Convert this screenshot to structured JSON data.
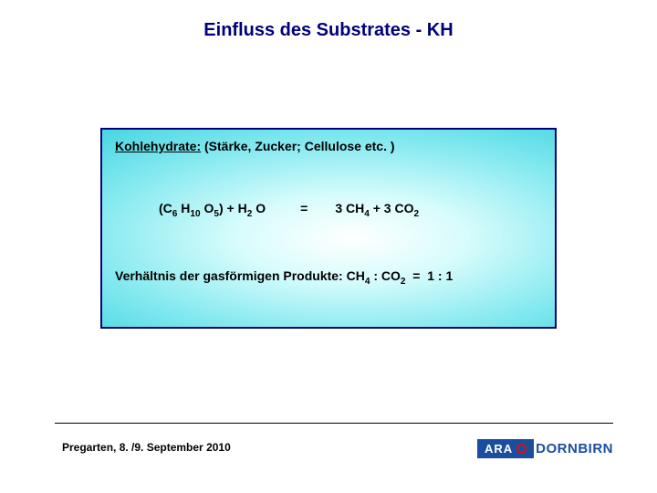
{
  "title": "Einfluss des Substrates - KH",
  "box": {
    "section_label_underlined": "Kohlehydrate:",
    "section_label_rest": " (Stärke, Zucker; Cellulose etc. )",
    "equation": {
      "lhs_html": "(C<sub>6</sub> H<sub>10</sub> O<sub>5</sub>) + H<sub>2</sub> O",
      "eq": "=",
      "rhs_html": "3 CH<sub>4</sub> + 3 CO<sub>2</sub>"
    },
    "ratio_html": "Verhältnis der gasförmigen Produkte: CH<sub>4</sub> : CO<sub>2</sub>&nbsp;&nbsp;=&nbsp;&nbsp;1 : 1"
  },
  "footer": {
    "text": "Pregarten, 8. /9. September 2010",
    "logo_ara": "ARA",
    "logo_rest": "DORNBIRN"
  },
  "colors": {
    "title_color": "#00007a",
    "box_border": "#00007a",
    "logo_blue": "#1a4fa0",
    "logo_red": "#d01414",
    "gradient_inner": "#ffffff",
    "gradient_outer": "#07b8cb"
  }
}
